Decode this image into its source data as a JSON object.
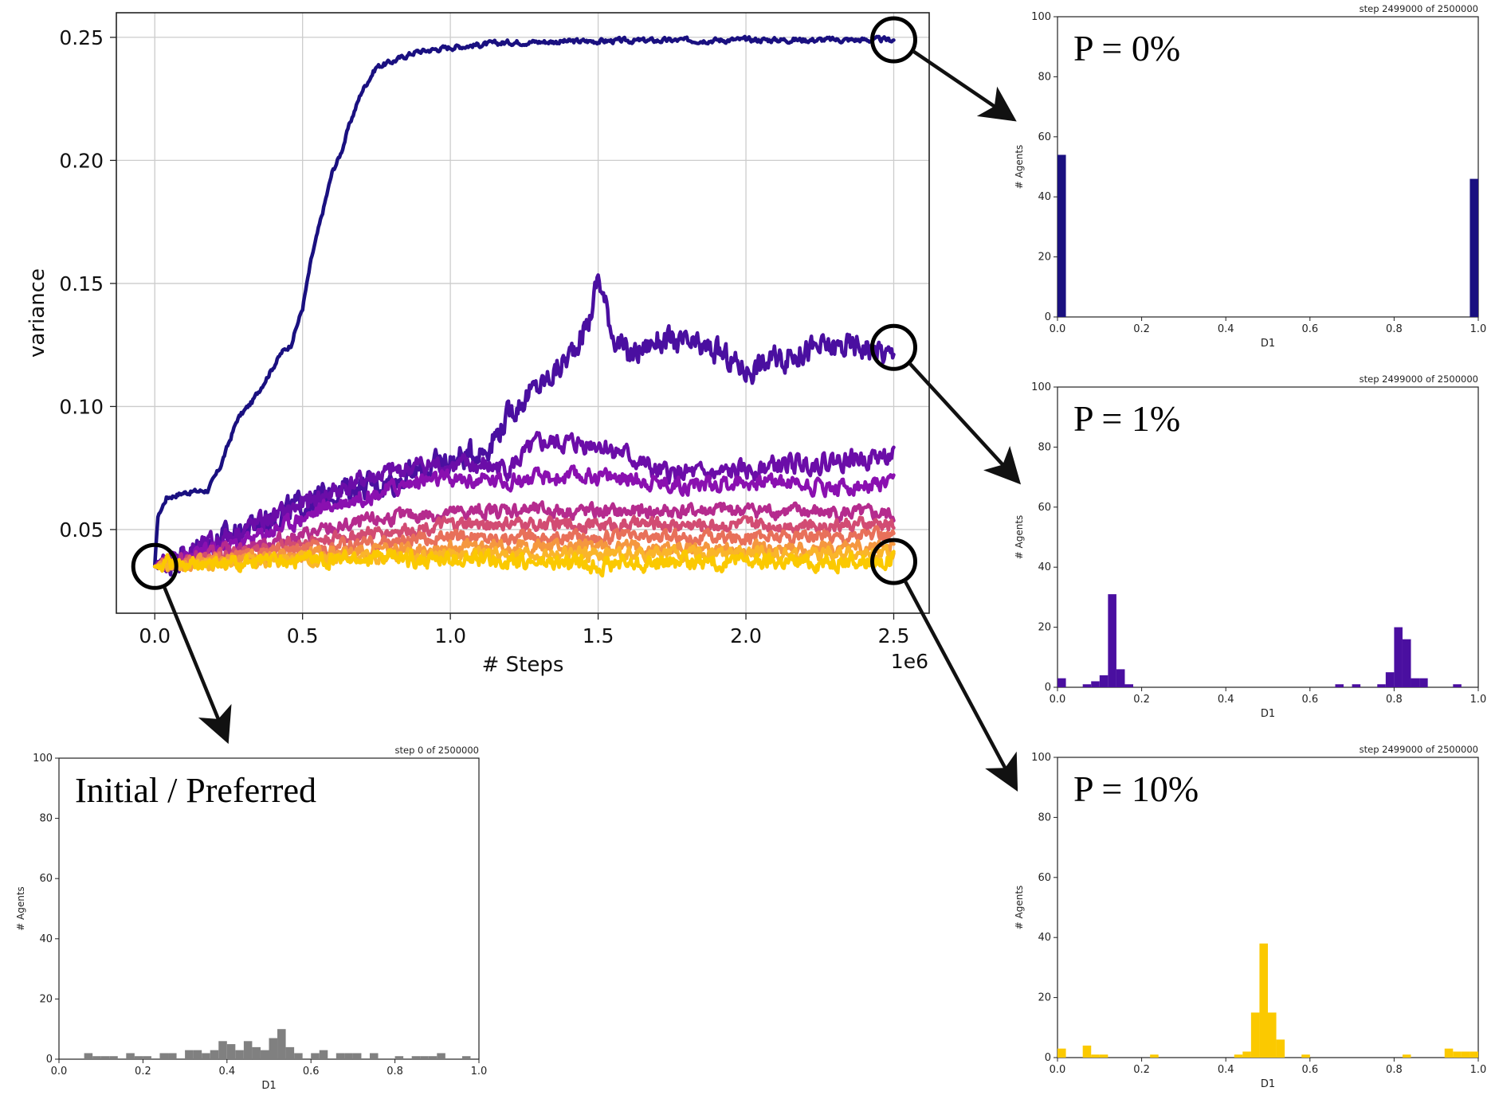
{
  "colors": {
    "p0": "#1a1080",
    "p1": "#4a0fa0",
    "initial": "#808080",
    "p10": "#fbc900",
    "mid_series": [
      "#6b0da8",
      "#8a10b0",
      "#b52b8e",
      "#d24c73",
      "#e8705a",
      "#f5973f",
      "#fab52a"
    ],
    "grid": "#cccccc",
    "axis": "#222222"
  },
  "chart_data": [
    {
      "type": "line",
      "xlabel": "# Steps",
      "ylabel": "variance",
      "x_multiplier_label": "1e6",
      "xlim": [
        -0.13,
        2.62
      ],
      "ylim": [
        0.016,
        0.26
      ],
      "xticks": [
        0.0,
        0.5,
        1.0,
        1.5,
        2.0,
        2.5
      ],
      "xtick_labels": [
        "0.0",
        "0.5",
        "1.0",
        "1.5",
        "2.0",
        "2.5"
      ],
      "yticks": [
        0.05,
        0.1,
        0.15,
        0.2,
        0.25
      ],
      "ytick_labels": [
        "0.05",
        "0.10",
        "0.15",
        "0.20",
        "0.25"
      ],
      "grid": true,
      "series": [
        {
          "color": "#1a1080",
          "noise": 0.0008,
          "points": [
            [
              0,
              0.035
            ],
            [
              0.01,
              0.055
            ],
            [
              0.04,
              0.063
            ],
            [
              0.1,
              0.065
            ],
            [
              0.18,
              0.066
            ],
            [
              0.22,
              0.075
            ],
            [
              0.28,
              0.095
            ],
            [
              0.33,
              0.102
            ],
            [
              0.38,
              0.112
            ],
            [
              0.43,
              0.122
            ],
            [
              0.46,
              0.125
            ],
            [
              0.5,
              0.14
            ],
            [
              0.53,
              0.16
            ],
            [
              0.57,
              0.18
            ],
            [
              0.6,
              0.195
            ],
            [
              0.63,
              0.203
            ],
            [
              0.66,
              0.215
            ],
            [
              0.7,
              0.228
            ],
            [
              0.75,
              0.238
            ],
            [
              0.8,
              0.24
            ],
            [
              0.88,
              0.244
            ],
            [
              1.0,
              0.246
            ],
            [
              1.2,
              0.248
            ],
            [
              1.5,
              0.2485
            ],
            [
              2.0,
              0.249
            ],
            [
              2.5,
              0.249
            ]
          ]
        },
        {
          "color": "#4a0fa0",
          "noise": 0.004,
          "points": [
            [
              0,
              0.035
            ],
            [
              0.2,
              0.045
            ],
            [
              0.4,
              0.055
            ],
            [
              0.6,
              0.065
            ],
            [
              0.8,
              0.07
            ],
            [
              1.0,
              0.078
            ],
            [
              1.12,
              0.083
            ],
            [
              1.22,
              0.1
            ],
            [
              1.32,
              0.11
            ],
            [
              1.4,
              0.12
            ],
            [
              1.47,
              0.135
            ],
            [
              1.5,
              0.153
            ],
            [
              1.55,
              0.13
            ],
            [
              1.6,
              0.12
            ],
            [
              1.7,
              0.127
            ],
            [
              1.9,
              0.122
            ],
            [
              2.0,
              0.115
            ],
            [
              2.2,
              0.123
            ],
            [
              2.4,
              0.125
            ],
            [
              2.5,
              0.12
            ]
          ]
        },
        {
          "color": "#6b0da8",
          "noise": 0.003,
          "points": [
            [
              0,
              0.035
            ],
            [
              0.2,
              0.045
            ],
            [
              0.5,
              0.06
            ],
            [
              0.7,
              0.07
            ],
            [
              0.9,
              0.076
            ],
            [
              1.0,
              0.076
            ],
            [
              1.2,
              0.075
            ],
            [
              1.3,
              0.085
            ],
            [
              1.5,
              0.085
            ],
            [
              1.6,
              0.08
            ],
            [
              1.7,
              0.073
            ],
            [
              1.9,
              0.072
            ],
            [
              2.1,
              0.076
            ],
            [
              2.3,
              0.078
            ],
            [
              2.5,
              0.08
            ]
          ]
        },
        {
          "color": "#8a10b0",
          "noise": 0.0025,
          "points": [
            [
              0,
              0.035
            ],
            [
              0.3,
              0.045
            ],
            [
              0.6,
              0.06
            ],
            [
              0.9,
              0.07
            ],
            [
              1.2,
              0.07
            ],
            [
              1.5,
              0.072
            ],
            [
              1.8,
              0.068
            ],
            [
              2.1,
              0.07
            ],
            [
              2.3,
              0.067
            ],
            [
              2.5,
              0.068
            ]
          ]
        },
        {
          "color": "#b52b8e",
          "noise": 0.0022,
          "points": [
            [
              0,
              0.035
            ],
            [
              0.4,
              0.045
            ],
            [
              0.8,
              0.055
            ],
            [
              1.2,
              0.058
            ],
            [
              1.6,
              0.057
            ],
            [
              2.0,
              0.058
            ],
            [
              2.5,
              0.056
            ]
          ]
        },
        {
          "color": "#d24c73",
          "noise": 0.002,
          "points": [
            [
              0,
              0.035
            ],
            [
              0.5,
              0.045
            ],
            [
              1.0,
              0.052
            ],
            [
              1.5,
              0.052
            ],
            [
              2.0,
              0.052
            ],
            [
              2.5,
              0.052
            ]
          ]
        },
        {
          "color": "#e8705a",
          "noise": 0.002,
          "points": [
            [
              0,
              0.035
            ],
            [
              0.5,
              0.042
            ],
            [
              1.0,
              0.047
            ],
            [
              1.5,
              0.047
            ],
            [
              2.0,
              0.047
            ],
            [
              2.5,
              0.048
            ]
          ]
        },
        {
          "color": "#f5973f",
          "noise": 0.002,
          "points": [
            [
              0,
              0.035
            ],
            [
              0.5,
              0.04
            ],
            [
              1.0,
              0.043
            ],
            [
              1.5,
              0.043
            ],
            [
              2.0,
              0.042
            ],
            [
              2.5,
              0.043
            ]
          ]
        },
        {
          "color": "#fab52a",
          "noise": 0.002,
          "points": [
            [
              0,
              0.035
            ],
            [
              0.5,
              0.038
            ],
            [
              1.0,
              0.04
            ],
            [
              1.5,
              0.04
            ],
            [
              2.0,
              0.04
            ],
            [
              2.5,
              0.04
            ]
          ]
        },
        {
          "color": "#fbc900",
          "noise": 0.0025,
          "points": [
            [
              0,
              0.035
            ],
            [
              0.5,
              0.038
            ],
            [
              1.0,
              0.038
            ],
            [
              1.5,
              0.036
            ],
            [
              2.0,
              0.037
            ],
            [
              2.5,
              0.037
            ]
          ]
        }
      ]
    },
    {
      "type": "bar",
      "name": "P = 0%",
      "title": "step 2499000 of 2500000",
      "xlabel": "D1",
      "ylabel": "# Agents",
      "xlim": [
        0,
        1
      ],
      "ylim": [
        0,
        100
      ],
      "bin_width": 0.02,
      "color": "#1a1080",
      "bars": [
        [
          0.0,
          54
        ],
        [
          0.98,
          46
        ]
      ]
    },
    {
      "type": "bar",
      "name": "P = 1%",
      "title": "step 2499000 of 2500000",
      "xlabel": "D1",
      "ylabel": "# Agents",
      "xlim": [
        0,
        1
      ],
      "ylim": [
        0,
        100
      ],
      "bin_width": 0.02,
      "color": "#4a0fa0",
      "bars": [
        [
          0.0,
          3
        ],
        [
          0.06,
          1
        ],
        [
          0.08,
          2
        ],
        [
          0.1,
          4
        ],
        [
          0.12,
          31
        ],
        [
          0.14,
          6
        ],
        [
          0.16,
          1
        ],
        [
          0.66,
          1
        ],
        [
          0.7,
          1
        ],
        [
          0.76,
          1
        ],
        [
          0.78,
          5
        ],
        [
          0.8,
          20
        ],
        [
          0.82,
          16
        ],
        [
          0.84,
          3
        ],
        [
          0.86,
          3
        ],
        [
          0.94,
          1
        ]
      ]
    },
    {
      "type": "bar",
      "name": "P = 10%",
      "title": "step 2499000 of 2500000",
      "xlabel": "D1",
      "ylabel": "# Agents",
      "xlim": [
        0,
        1
      ],
      "ylim": [
        0,
        100
      ],
      "bin_width": 0.02,
      "color": "#fbc900",
      "bars": [
        [
          0.0,
          3
        ],
        [
          0.06,
          4
        ],
        [
          0.08,
          1
        ],
        [
          0.1,
          1
        ],
        [
          0.22,
          1
        ],
        [
          0.42,
          1
        ],
        [
          0.44,
          2
        ],
        [
          0.46,
          15
        ],
        [
          0.48,
          38
        ],
        [
          0.5,
          15
        ],
        [
          0.52,
          6
        ],
        [
          0.58,
          1
        ],
        [
          0.82,
          1
        ],
        [
          0.92,
          3
        ],
        [
          0.94,
          2
        ],
        [
          0.96,
          2
        ],
        [
          0.98,
          2
        ]
      ]
    },
    {
      "type": "bar",
      "name": "Initial / Preferred",
      "title": "step 0 of 2500000",
      "xlabel": "D1",
      "ylabel": "# Agents",
      "xlim": [
        0,
        1
      ],
      "ylim": [
        0,
        100
      ],
      "bin_width": 0.02,
      "color": "#808080",
      "bars": [
        [
          0.06,
          2
        ],
        [
          0.08,
          1
        ],
        [
          0.1,
          1
        ],
        [
          0.12,
          1
        ],
        [
          0.16,
          2
        ],
        [
          0.18,
          1
        ],
        [
          0.2,
          1
        ],
        [
          0.24,
          2
        ],
        [
          0.26,
          2
        ],
        [
          0.3,
          3
        ],
        [
          0.32,
          3
        ],
        [
          0.34,
          2
        ],
        [
          0.36,
          3
        ],
        [
          0.38,
          6
        ],
        [
          0.4,
          5
        ],
        [
          0.42,
          3
        ],
        [
          0.44,
          6
        ],
        [
          0.46,
          4
        ],
        [
          0.48,
          3
        ],
        [
          0.5,
          7
        ],
        [
          0.52,
          10
        ],
        [
          0.54,
          4
        ],
        [
          0.56,
          2
        ],
        [
          0.6,
          2
        ],
        [
          0.62,
          3
        ],
        [
          0.66,
          2
        ],
        [
          0.68,
          2
        ],
        [
          0.7,
          2
        ],
        [
          0.74,
          2
        ],
        [
          0.8,
          1
        ],
        [
          0.84,
          1
        ],
        [
          0.86,
          1
        ],
        [
          0.88,
          1
        ],
        [
          0.9,
          2
        ],
        [
          0.96,
          1
        ]
      ]
    }
  ]
}
